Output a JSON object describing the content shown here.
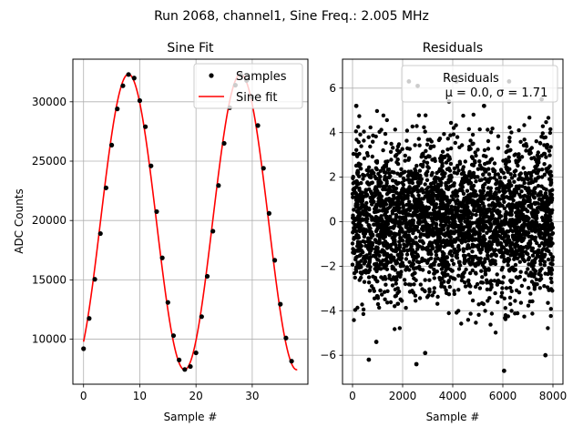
{
  "figure": {
    "suptitle": "Run 2068, channel1, Sine Freq.: 2.005 MHz"
  },
  "chart_data": [
    {
      "type": "scatter",
      "title": "Sine Fit",
      "xlabel": "Sample #",
      "ylabel": "ADC Counts",
      "xlim": [
        -1.9,
        39.9
      ],
      "ylim": [
        6210,
        33590
      ],
      "xticks": [
        0,
        10,
        20,
        30
      ],
      "yticks": [
        10000,
        15000,
        20000,
        25000,
        30000
      ],
      "xtick_labels": [
        "0",
        "10",
        "20",
        "30"
      ],
      "ytick_labels": [
        "10000",
        "15000",
        "20000",
        "25000",
        "30000"
      ],
      "grid": true,
      "legend": {
        "placement": "top-right",
        "entries": [
          "Samples",
          "Sine fit"
        ]
      },
      "fit": {
        "amplitude": 12450,
        "offset": 19880,
        "period": 19.95,
        "x0": 3.0,
        "x_start": 0,
        "x_end": 38
      },
      "series": [
        {
          "name": "Samples",
          "style": "points",
          "color": "#000000",
          "x": [
            0,
            1,
            2,
            3,
            4,
            5,
            6,
            7,
            8,
            9,
            10,
            11,
            12,
            13,
            14,
            15,
            16,
            17,
            18,
            19,
            20,
            21,
            22,
            23,
            24,
            25,
            26,
            27,
            28,
            29,
            30,
            31,
            32,
            33,
            34,
            35,
            36,
            37
          ],
          "y": [
            9200,
            11750,
            15050,
            18900,
            22750,
            26350,
            29400,
            31350,
            32300,
            32000,
            30100,
            27900,
            24600,
            20750,
            16850,
            13100,
            10300,
            8250,
            7450,
            7700,
            8850,
            11900,
            15300,
            19100,
            22950,
            26500,
            29500,
            31400,
            32250,
            31800,
            30400,
            28000,
            24400,
            20600,
            16650,
            12950,
            10100,
            8150
          ]
        },
        {
          "name": "Sine fit",
          "style": "line",
          "color": "#ff0000"
        }
      ]
    },
    {
      "type": "scatter",
      "title": "Residuals",
      "xlabel": "Sample #",
      "ylabel": "",
      "xlim": [
        -400,
        8400
      ],
      "ylim": [
        -7.3,
        7.3
      ],
      "xticks": [
        0,
        2000,
        4000,
        6000,
        8000
      ],
      "yticks": [
        -6,
        -4,
        -2,
        0,
        2,
        4,
        6
      ],
      "xtick_labels": [
        "0",
        "2000",
        "4000",
        "6000",
        "8000"
      ],
      "ytick_labels": [
        "−6",
        "−4",
        "−2",
        "0",
        "2",
        "4",
        "6"
      ],
      "grid": true,
      "legend": {
        "placement": "top-right",
        "title": "Residuals",
        "text": "μ = 0.0, σ = 1.71"
      },
      "series": [
        {
          "name": "Residuals",
          "color": "#000000",
          "n_points": 8000,
          "x_range": [
            0,
            8000
          ],
          "mean": 0.0,
          "std": 1.71,
          "outliers": [
            {
              "x": 150,
              "y": 5.2
            },
            {
              "x": 2250,
              "y": 6.3
            },
            {
              "x": 2600,
              "y": 6.1
            },
            {
              "x": 4150,
              "y": 6.3
            },
            {
              "x": 6250,
              "y": 6.3
            },
            {
              "x": 7550,
              "y": 5.5
            },
            {
              "x": 650,
              "y": -6.2
            },
            {
              "x": 2550,
              "y": -6.4
            },
            {
              "x": 6050,
              "y": -6.7
            },
            {
              "x": 7700,
              "y": -6.0
            },
            {
              "x": 950,
              "y": -5.4
            },
            {
              "x": 2900,
              "y": -5.9
            },
            {
              "x": 3850,
              "y": 5.4
            },
            {
              "x": 5250,
              "y": 5.2
            }
          ]
        }
      ]
    }
  ]
}
